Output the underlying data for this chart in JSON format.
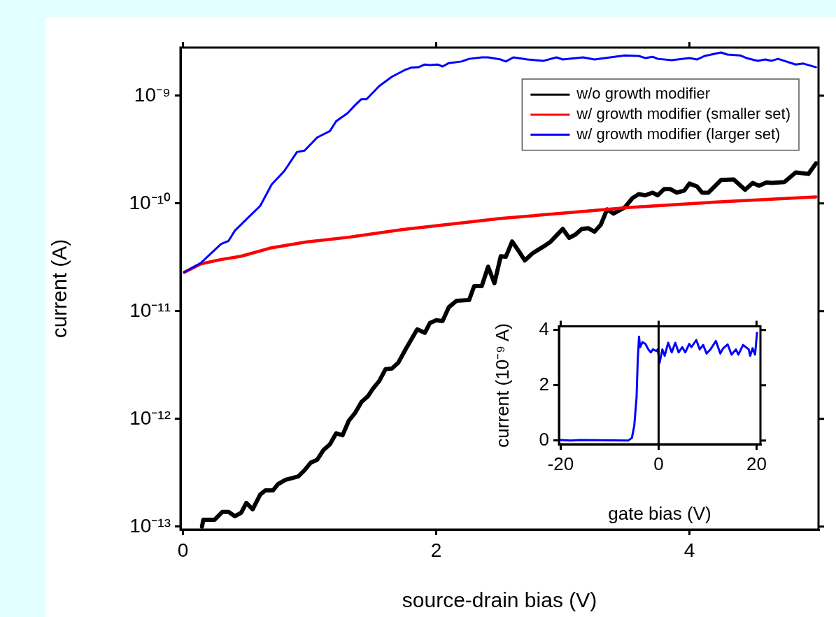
{
  "chart_data": [
    {
      "type": "line",
      "xlabel": "source-drain bias (V)",
      "ylabel": "current (A)",
      "log": "y",
      "marker": "none",
      "legend": "top right",
      "xlim": [
        -0.02,
        5.02
      ],
      "ylim": [
        9.4e-14,
        2.8e-09
      ],
      "xticks": [
        0,
        2,
        4
      ],
      "yticks": [
        {
          "value": 1e-13,
          "label": "10⁻¹³"
        },
        {
          "value": 1e-12,
          "label": "10⁻¹²"
        },
        {
          "value": 1e-11,
          "label": "10⁻¹¹"
        },
        {
          "value": 1e-10,
          "label": "10⁻¹⁰"
        },
        {
          "value": 1e-09,
          "label": "10⁻⁹"
        }
      ],
      "series": [
        {
          "name": "w/o growth modifier",
          "color": "#000000",
          "x": [
            0.15,
            0.16,
            0.25,
            0.31,
            0.36,
            0.41,
            0.46,
            0.5,
            0.55,
            0.61,
            0.65,
            0.71,
            0.75,
            0.81,
            0.91,
            0.96,
            1.01,
            1.06,
            1.11,
            1.16,
            1.21,
            1.26,
            1.31,
            1.36,
            1.41,
            1.46,
            1.5,
            1.55,
            1.6,
            1.65,
            1.7,
            1.76,
            1.85,
            1.91,
            1.95,
            2.0,
            2.05,
            2.1,
            2.16,
            2.26,
            2.3,
            2.36,
            2.41,
            2.46,
            2.51,
            2.55,
            2.6,
            2.66,
            2.7,
            2.76,
            2.85,
            2.9,
            3.0,
            3.05,
            3.1,
            3.15,
            3.2,
            3.25,
            3.3,
            3.35,
            3.4,
            3.49,
            3.55,
            3.6,
            3.65,
            3.71,
            3.75,
            3.8,
            3.85,
            3.9,
            3.96,
            4.0,
            4.06,
            4.1,
            4.15,
            4.25,
            4.35,
            4.44,
            4.5,
            4.55,
            4.61,
            4.65,
            4.75,
            4.84,
            4.94,
            5.0
          ],
          "values": [
            1e-13,
            1.16e-13,
            1.16e-13,
            1.37e-13,
            1.37e-13,
            1.25e-13,
            1.35e-13,
            1.66e-13,
            1.45e-13,
            1.99e-13,
            2.17e-13,
            2.17e-13,
            2.48e-13,
            2.72e-13,
            2.92e-13,
            3.34e-13,
            3.94e-13,
            4.18e-13,
            5.15e-13,
            5.81e-13,
            7.36e-13,
            7.05e-13,
            9.64e-13,
            1.14e-12,
            1.44e-12,
            1.62e-12,
            1.91e-12,
            2.25e-12,
            2.9e-12,
            2.94e-12,
            3.32e-12,
            4.47e-12,
            6.79e-12,
            6.3e-12,
            7.76e-12,
            8.24e-12,
            8.1e-12,
            1.09e-11,
            1.25e-11,
            1.27e-11,
            1.71e-11,
            1.71e-11,
            2.59e-11,
            1.82e-11,
            3.24e-11,
            3.2e-11,
            4.44e-11,
            3.5e-11,
            2.96e-11,
            3.44e-11,
            4e-11,
            4.38e-11,
            5.81e-11,
            4.79e-11,
            5.15e-11,
            5.81e-11,
            5.9e-11,
            5.47e-11,
            6.35e-11,
            8.81e-11,
            8.05e-11,
            9.2e-11,
            1.12e-10,
            1.22e-10,
            1.19e-10,
            1.26e-10,
            1.19e-10,
            1.36e-10,
            1.36e-10,
            1.26e-10,
            1.32e-10,
            1.53e-10,
            1.44e-10,
            1.26e-10,
            1.26e-10,
            1.65e-10,
            1.67e-10,
            1.34e-10,
            1.55e-10,
            1.46e-10,
            1.57e-10,
            1.55e-10,
            1.58e-10,
            1.94e-10,
            1.88e-10,
            2.36e-10
          ]
        },
        {
          "name": "w/ growth modifier (smaller set)",
          "color": "#ff0000",
          "x": [
            0.01,
            0.14,
            0.29,
            0.46,
            0.7,
            0.97,
            1.31,
            1.73,
            2.17,
            2.51,
            3.16,
            3.53,
            4.27,
            5.0
          ],
          "values": [
            2.3e-11,
            2.75e-11,
            3e-11,
            3.24e-11,
            3.88e-11,
            4.38e-11,
            4.86e-11,
            5.71e-11,
            6.55e-11,
            7.26e-11,
            8.43e-11,
            9.2e-11,
            1.04e-10,
            1.15e-10
          ]
        },
        {
          "name": "w/ growth modifier (larger set)",
          "color": "#0000ff",
          "x": [
            0.01,
            0.14,
            0.3,
            0.36,
            0.41,
            0.51,
            0.61,
            0.7,
            0.8,
            0.9,
            0.96,
            1.06,
            1.16,
            1.21,
            1.3,
            1.36,
            1.41,
            1.45,
            1.55,
            1.65,
            1.75,
            1.8,
            1.86,
            1.91,
            1.95,
            2.01,
            2.05,
            2.1,
            2.2,
            2.26,
            2.36,
            2.41,
            2.51,
            2.55,
            2.61,
            2.72,
            2.85,
            2.95,
            3.0,
            3.16,
            3.25,
            3.49,
            3.6,
            3.65,
            3.71,
            3.75,
            3.86,
            4.0,
            4.06,
            4.12,
            4.25,
            4.3,
            4.4,
            4.45,
            4.54,
            4.6,
            4.65,
            4.7,
            4.84,
            4.9,
            5.0
          ],
          "values": [
            2.3e-11,
            2.8e-11,
            4.2e-11,
            4.5e-11,
            5.6e-11,
            7.3e-11,
            9.5e-11,
            1.5e-10,
            2e-10,
            3e-10,
            3.1e-10,
            4.1e-10,
            4.7e-10,
            5.8e-10,
            6.9e-10,
            8.2e-10,
            9.3e-10,
            9.3e-10,
            1.23e-09,
            1.5e-09,
            1.73e-09,
            1.82e-09,
            1.84e-09,
            1.95e-09,
            1.93e-09,
            1.95e-09,
            1.87e-09,
            2.01e-09,
            2.08e-09,
            2.2e-09,
            2.27e-09,
            2.27e-09,
            2.17e-09,
            2.08e-09,
            2.27e-09,
            2.17e-09,
            2.11e-09,
            2.27e-09,
            2.17e-09,
            2.27e-09,
            2.17e-09,
            2.37e-09,
            2.34e-09,
            2.24e-09,
            2.3e-09,
            2.2e-09,
            2.14e-09,
            2.24e-09,
            2.17e-09,
            2.34e-09,
            2.52e-09,
            2.41e-09,
            2.37e-09,
            2.24e-09,
            2.11e-09,
            2.17e-09,
            2.11e-09,
            2.2e-09,
            1.95e-09,
            1.99e-09,
            1.84e-09
          ]
        }
      ]
    },
    {
      "type": "line",
      "xlabel": "gate bias (V)",
      "ylabel": "current (10⁻⁹ A)",
      "marker": "none",
      "xlim": [
        -20.35,
        20.8
      ],
      "ylim": [
        -0.13,
        4.13
      ],
      "xticks": [
        -20,
        0,
        20
      ],
      "yticks": [
        0,
        2,
        4
      ],
      "ref_lines": [
        {
          "axis": "x",
          "value": 0,
          "color": "#000000"
        }
      ],
      "series": [
        {
          "color": "#0000ff",
          "x": [
            -20,
            -17.9,
            -16,
            -6.2,
            -5.45,
            -4.97,
            -4.5,
            -4.26,
            -4.0,
            -3.78,
            -3.3,
            -2.7,
            -2.1,
            -1.6,
            -1.15,
            -0.43,
            -0.19,
            0.2,
            0.77,
            1.24,
            1.96,
            2.68,
            3.4,
            4.1,
            4.83,
            5.45,
            6.26,
            6.7,
            7.7,
            8.4,
            9.1,
            9.8,
            10.6,
            11.7,
            12.6,
            13.2,
            14.1,
            14.9,
            15.8,
            16.3,
            17.25,
            18.4,
            18.7,
            19.2,
            19.7,
            20.1
          ],
          "values": [
            0.02,
            0,
            0.02,
            0,
            0.1,
            0.54,
            1.57,
            2.91,
            3.76,
            3.38,
            3.56,
            3.5,
            3.3,
            3.19,
            3.3,
            3.24,
            3.3,
            2.81,
            3.3,
            3.07,
            3.54,
            3.19,
            3.54,
            3.19,
            3.38,
            3.19,
            3.5,
            3.38,
            3.64,
            3.3,
            3.46,
            3.15,
            3.3,
            3.6,
            3.15,
            3.34,
            3.48,
            3.11,
            3.3,
            3.11,
            3.46,
            3.3,
            3.07,
            3.34,
            3.11,
            3.9
          ]
        }
      ]
    }
  ]
}
